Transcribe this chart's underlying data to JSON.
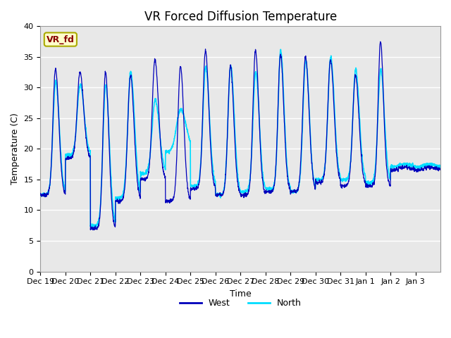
{
  "title": "VR Forced Diffusion Temperature",
  "xlabel": "Time",
  "ylabel": "Temperature (C)",
  "ylim": [
    0,
    40
  ],
  "yticks": [
    0,
    5,
    10,
    15,
    20,
    25,
    30,
    35,
    40
  ],
  "x_labels": [
    "Dec 19",
    "Dec 20",
    "Dec 21",
    "Dec 22",
    "Dec 23",
    "Dec 24",
    "Dec 25",
    "Dec 26",
    "Dec 27",
    "Dec 28",
    "Dec 29",
    "Dec 30",
    "Dec 31",
    "Jan 1",
    "Jan 2",
    "Jan 3"
  ],
  "west_color": "#0000BB",
  "north_color": "#00DDFF",
  "bg_color": "#E8E8E8",
  "annotation_text": "VR_fd",
  "annotation_bg": "#FFFFCC",
  "annotation_border": "#AAAA00",
  "annotation_text_color": "#880000",
  "legend_west": "West",
  "legend_north": "North",
  "title_fontsize": 12,
  "label_fontsize": 9,
  "tick_fontsize": 8,
  "figwidth": 6.4,
  "figheight": 4.8,
  "dpi": 100
}
